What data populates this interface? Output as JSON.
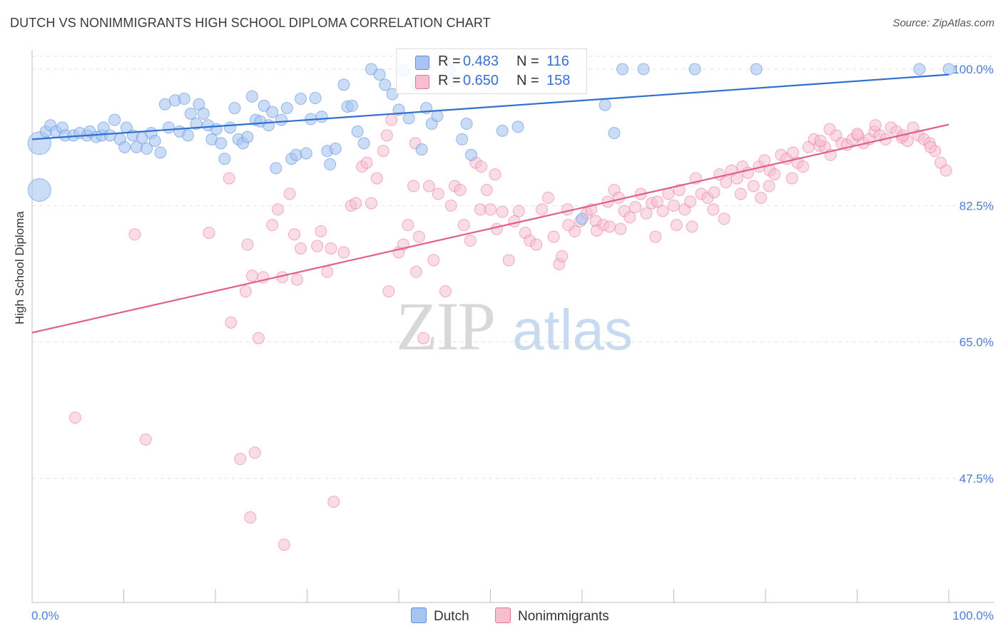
{
  "title": "DUTCH VS NONIMMIGRANTS HIGH SCHOOL DIPLOMA CORRELATION CHART",
  "source": "Source: ZipAtlas.com",
  "colors": {
    "dutch": "#5b8fe0",
    "dutch_fill": "#a9c4f0",
    "nonimmigrants": "#e8739a",
    "nonimmigrants_fill": "#f6bfd0",
    "tick_label": "#4a7fd4"
  },
  "legend_top": {
    "dutch": {
      "r_label": "R =",
      "r_value": "0.483",
      "n_label": "N =",
      "n_value": "116"
    },
    "nonimmigrants": {
      "r_label": "R =",
      "r_value": "0.650",
      "n_label": "N =",
      "n_value": "158"
    }
  },
  "legend_bottom": {
    "dutch": "Dutch",
    "nonimmigrants": "Nonimmigrants"
  },
  "chart_data": {
    "type": "scatter",
    "ylabel": "High School Diploma",
    "xlim": [
      0,
      100
    ],
    "ylim": [
      32,
      102
    ],
    "x_tick_labels": [
      "0.0%",
      "100.0%"
    ],
    "y_ticks": [
      47.5,
      65.0,
      82.5,
      100.0
    ],
    "y_tick_labels": [
      "47.5%",
      "65.0%",
      "82.5%",
      "100.0%"
    ],
    "grid": "horizontal dashed",
    "watermark": "ZIPatlas",
    "series": [
      {
        "name": "Dutch",
        "trend": {
          "x": [
            0,
            100
          ],
          "y": [
            91.0,
            99.3
          ]
        },
        "points": [
          [
            0.8,
            84.5
          ],
          [
            0.8,
            90.5
          ],
          [
            1.5,
            92.0
          ],
          [
            2.0,
            92.8
          ],
          [
            2.6,
            92.0
          ],
          [
            3.3,
            92.5
          ],
          [
            3.6,
            91.5
          ],
          [
            4.5,
            91.5
          ],
          [
            5.2,
            91.8
          ],
          [
            6.0,
            91.5
          ],
          [
            6.3,
            92.0
          ],
          [
            7.0,
            91.3
          ],
          [
            7.6,
            91.5
          ],
          [
            7.8,
            92.5
          ],
          [
            8.5,
            91.5
          ],
          [
            9.0,
            93.5
          ],
          [
            9.6,
            91.0
          ],
          [
            10.1,
            90.0
          ],
          [
            10.3,
            92.5
          ],
          [
            11.0,
            91.5
          ],
          [
            11.4,
            90.0
          ],
          [
            12.0,
            91.2
          ],
          [
            12.5,
            89.8
          ],
          [
            13.0,
            91.8
          ],
          [
            13.4,
            90.8
          ],
          [
            14.0,
            89.3
          ],
          [
            14.5,
            95.5
          ],
          [
            14.9,
            92.5
          ],
          [
            15.6,
            96.0
          ],
          [
            16.1,
            92.0
          ],
          [
            16.6,
            96.2
          ],
          [
            17.0,
            91.5
          ],
          [
            17.3,
            94.3
          ],
          [
            17.9,
            93.0
          ],
          [
            18.2,
            95.5
          ],
          [
            18.7,
            94.3
          ],
          [
            19.2,
            92.8
          ],
          [
            19.6,
            91.0
          ],
          [
            20.1,
            92.3
          ],
          [
            20.6,
            90.5
          ],
          [
            21.0,
            88.5
          ],
          [
            21.6,
            92.5
          ],
          [
            22.1,
            95.0
          ],
          [
            22.5,
            91.0
          ],
          [
            23.0,
            90.5
          ],
          [
            23.5,
            91.3
          ],
          [
            24.0,
            96.5
          ],
          [
            24.4,
            93.5
          ],
          [
            24.9,
            93.3
          ],
          [
            25.3,
            95.3
          ],
          [
            25.8,
            92.8
          ],
          [
            26.2,
            94.5
          ],
          [
            26.6,
            87.3
          ],
          [
            27.2,
            93.5
          ],
          [
            27.8,
            95.0
          ],
          [
            28.3,
            88.5
          ],
          [
            28.8,
            89.0
          ],
          [
            29.3,
            96.2
          ],
          [
            29.9,
            89.2
          ],
          [
            30.4,
            93.6
          ],
          [
            30.9,
            96.3
          ],
          [
            31.6,
            93.9
          ],
          [
            32.2,
            89.5
          ],
          [
            32.5,
            87.8
          ],
          [
            33.1,
            89.8
          ],
          [
            34.0,
            98.0
          ],
          [
            34.4,
            95.2
          ],
          [
            34.9,
            95.3
          ],
          [
            35.5,
            92.0
          ],
          [
            36.2,
            90.5
          ],
          [
            37.0,
            100.0
          ],
          [
            37.9,
            99.3
          ],
          [
            38.5,
            98.0
          ],
          [
            39.3,
            96.8
          ],
          [
            40.0,
            94.8
          ],
          [
            40.5,
            99.8
          ],
          [
            41.1,
            93.7
          ],
          [
            42.0,
            98.0
          ],
          [
            42.5,
            89.7
          ],
          [
            43.0,
            95.0
          ],
          [
            43.6,
            93.0
          ],
          [
            44.2,
            94.0
          ],
          [
            45.5,
            100.0
          ],
          [
            46.0,
            98.5
          ],
          [
            46.9,
            91.0
          ],
          [
            47.4,
            93.0
          ],
          [
            47.9,
            89.0
          ],
          [
            49.8,
            98.3
          ],
          [
            51.3,
            92.1
          ],
          [
            53.0,
            92.6
          ],
          [
            58.0,
            100.0
          ],
          [
            60.0,
            80.8
          ],
          [
            62.5,
            95.4
          ],
          [
            63.5,
            91.8
          ],
          [
            64.4,
            100.0
          ],
          [
            66.7,
            100.0
          ],
          [
            72.3,
            100.0
          ],
          [
            79.0,
            100.0
          ],
          [
            96.8,
            100.0
          ],
          [
            100.0,
            100.0
          ]
        ],
        "point_sizes_note": "two large points at x=0.8"
      },
      {
        "name": "Nonimmigrants",
        "trend": {
          "x": [
            0,
            100
          ],
          "y": [
            66.2,
            92.9
          ]
        },
        "points": [
          [
            4.7,
            55.3
          ],
          [
            11.2,
            78.8
          ],
          [
            12.4,
            52.5
          ],
          [
            19.3,
            79.0
          ],
          [
            21.5,
            86.0
          ],
          [
            21.7,
            67.5
          ],
          [
            22.7,
            50.0
          ],
          [
            23.3,
            71.5
          ],
          [
            23.5,
            77.5
          ],
          [
            23.8,
            42.5
          ],
          [
            24.0,
            73.5
          ],
          [
            24.3,
            50.8
          ],
          [
            24.7,
            65.5
          ],
          [
            25.2,
            73.3
          ],
          [
            26.2,
            80.0
          ],
          [
            26.8,
            82.0
          ],
          [
            27.3,
            73.3
          ],
          [
            27.5,
            39.0
          ],
          [
            28.1,
            84.0
          ],
          [
            28.6,
            78.8
          ],
          [
            28.9,
            73.0
          ],
          [
            29.3,
            77.0
          ],
          [
            31.1,
            77.3
          ],
          [
            31.5,
            79.2
          ],
          [
            32.2,
            74.0
          ],
          [
            32.6,
            77.0
          ],
          [
            32.9,
            44.5
          ],
          [
            34.0,
            76.5
          ],
          [
            34.8,
            82.5
          ],
          [
            35.3,
            82.8
          ],
          [
            36.0,
            87.5
          ],
          [
            36.5,
            88.0
          ],
          [
            37.0,
            82.8
          ],
          [
            37.6,
            86.0
          ],
          [
            38.3,
            89.5
          ],
          [
            38.9,
            71.5
          ],
          [
            39.2,
            93.5
          ],
          [
            40.0,
            76.5
          ],
          [
            40.5,
            77.5
          ],
          [
            41.0,
            80.0
          ],
          [
            41.6,
            85.0
          ],
          [
            41.9,
            74.0
          ],
          [
            42.2,
            78.5
          ],
          [
            42.7,
            65.5
          ],
          [
            43.3,
            85.0
          ],
          [
            43.8,
            75.5
          ],
          [
            44.3,
            84.0
          ],
          [
            45.1,
            71.5
          ],
          [
            45.7,
            82.5
          ],
          [
            46.1,
            85.0
          ],
          [
            46.7,
            84.5
          ],
          [
            47.1,
            80.0
          ],
          [
            47.8,
            78.0
          ],
          [
            48.4,
            88.0
          ],
          [
            48.9,
            82.0
          ],
          [
            49.6,
            84.5
          ],
          [
            50.0,
            82.0
          ],
          [
            50.7,
            79.5
          ],
          [
            51.3,
            81.7
          ],
          [
            52.0,
            75.5
          ],
          [
            52.6,
            80.5
          ],
          [
            53.1,
            81.8
          ],
          [
            53.8,
            79.0
          ],
          [
            54.3,
            78.0
          ],
          [
            55.0,
            77.5
          ],
          [
            55.6,
            82.0
          ],
          [
            56.3,
            83.5
          ],
          [
            56.9,
            78.5
          ],
          [
            57.5,
            75.0
          ],
          [
            57.8,
            76.0
          ],
          [
            58.4,
            82.0
          ],
          [
            59.2,
            79.2
          ],
          [
            59.8,
            80.5
          ],
          [
            60.5,
            81.5
          ],
          [
            61.0,
            82.0
          ],
          [
            61.5,
            80.5
          ],
          [
            62.3,
            80.0
          ],
          [
            62.8,
            83.0
          ],
          [
            63.5,
            84.5
          ],
          [
            64.0,
            83.5
          ],
          [
            64.6,
            81.8
          ],
          [
            65.2,
            81.0
          ],
          [
            65.8,
            82.3
          ],
          [
            66.4,
            84.0
          ],
          [
            67.0,
            81.5
          ],
          [
            67.6,
            82.8
          ],
          [
            68.2,
            83.0
          ],
          [
            68.8,
            81.8
          ],
          [
            69.4,
            84.0
          ],
          [
            70.0,
            82.5
          ],
          [
            70.6,
            84.5
          ],
          [
            71.2,
            82.0
          ],
          [
            71.8,
            83.0
          ],
          [
            72.4,
            86.0
          ],
          [
            73.0,
            84.0
          ],
          [
            73.7,
            83.5
          ],
          [
            74.4,
            84.2
          ],
          [
            75.0,
            86.5
          ],
          [
            75.7,
            85.5
          ],
          [
            76.3,
            87.0
          ],
          [
            76.9,
            86.0
          ],
          [
            77.5,
            87.5
          ],
          [
            78.1,
            86.7
          ],
          [
            78.7,
            85.0
          ],
          [
            79.3,
            87.5
          ],
          [
            79.9,
            88.3
          ],
          [
            80.5,
            87.0
          ],
          [
            81.0,
            86.5
          ],
          [
            81.7,
            89.0
          ],
          [
            82.3,
            88.5
          ],
          [
            82.9,
            86.0
          ],
          [
            83.5,
            88.0
          ],
          [
            84.1,
            87.5
          ],
          [
            84.7,
            90.0
          ],
          [
            85.3,
            91.0
          ],
          [
            85.9,
            90.2
          ],
          [
            86.5,
            90.0
          ],
          [
            87.1,
            89.0
          ],
          [
            87.7,
            91.5
          ],
          [
            88.3,
            90.5
          ],
          [
            88.9,
            90.3
          ],
          [
            89.5,
            91.0
          ],
          [
            90.1,
            91.5
          ],
          [
            90.7,
            90.5
          ],
          [
            91.3,
            91.0
          ],
          [
            91.9,
            92.0
          ],
          [
            92.5,
            91.5
          ],
          [
            93.1,
            91.0
          ],
          [
            93.7,
            92.5
          ],
          [
            94.3,
            92.0
          ],
          [
            94.9,
            91.2
          ],
          [
            95.5,
            90.8
          ],
          [
            96.1,
            92.5
          ],
          [
            96.7,
            91.5
          ],
          [
            97.3,
            91.0
          ],
          [
            97.9,
            90.5
          ],
          [
            98.5,
            89.5
          ],
          [
            99.1,
            88.0
          ],
          [
            99.7,
            87.0
          ],
          [
            38.7,
            91.5
          ],
          [
            41.8,
            90.5
          ],
          [
            49.0,
            87.5
          ],
          [
            50.5,
            86.5
          ],
          [
            58.5,
            80.0
          ],
          [
            61.6,
            79.3
          ],
          [
            63.0,
            79.8
          ],
          [
            64.2,
            79.5
          ],
          [
            68.0,
            78.5
          ],
          [
            70.3,
            80.0
          ],
          [
            72.0,
            79.8
          ],
          [
            74.3,
            82.0
          ],
          [
            75.5,
            80.8
          ],
          [
            77.3,
            84.0
          ],
          [
            79.5,
            83.5
          ],
          [
            80.4,
            85.0
          ],
          [
            83.0,
            89.3
          ],
          [
            86.0,
            90.8
          ],
          [
            87.0,
            92.3
          ],
          [
            90.0,
            91.7
          ],
          [
            92.0,
            92.8
          ],
          [
            95.0,
            91.5
          ],
          [
            98.0,
            90.0
          ]
        ]
      }
    ]
  }
}
